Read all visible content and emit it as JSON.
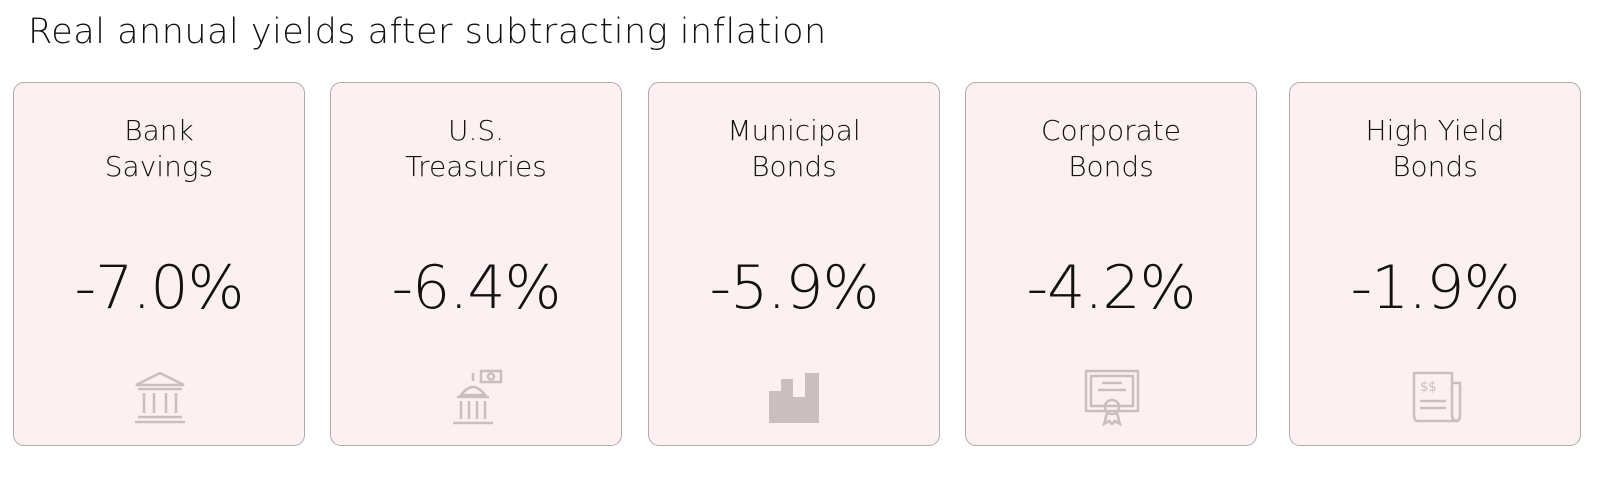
{
  "header": {
    "title": "Real annual yields after subtracting inflation"
  },
  "cards": [
    {
      "label": [
        "Bank",
        "Savings"
      ],
      "value": "-7.0%"
    },
    {
      "label": [
        "U.S.",
        "Treasuries"
      ],
      "value": "-6.4%"
    },
    {
      "label": [
        "Municipal",
        "Bonds"
      ],
      "value": "-5.9%"
    },
    {
      "label": [
        "Corporate",
        "Bonds"
      ],
      "value": "-4.2%"
    },
    {
      "label": [
        "High Yield",
        "Bonds"
      ],
      "value": "-1.9%"
    }
  ]
}
